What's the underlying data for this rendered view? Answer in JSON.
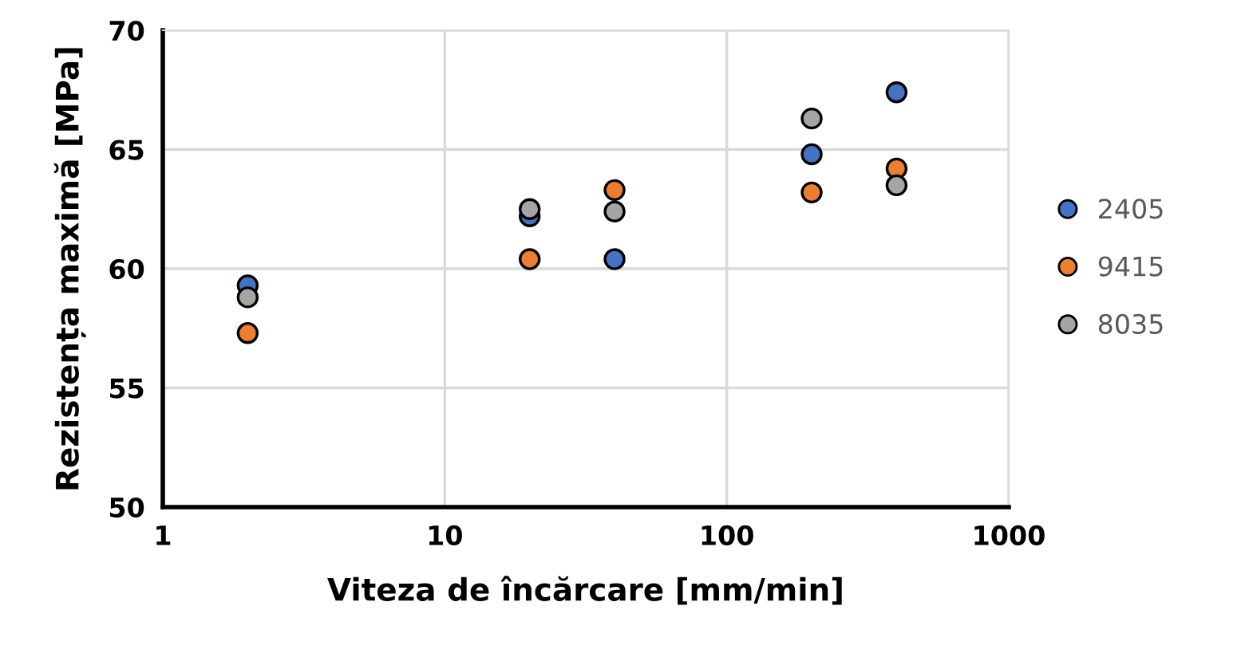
{
  "chart_data": {
    "type": "scatter",
    "xlabel": "Viteza de încărcare [mm/min]",
    "ylabel": "Rezistența maximă [MPa]",
    "log": "x",
    "xlim": [
      1,
      1000
    ],
    "xticks": [
      1,
      10,
      100,
      1000
    ],
    "ylim": [
      50,
      70
    ],
    "yticks": [
      50,
      55,
      60,
      65,
      70
    ],
    "grid": true,
    "legend": "right",
    "marker": "circle",
    "x": [
      2,
      20,
      40,
      200,
      400
    ],
    "series": [
      {
        "name": "2405",
        "color": "#4472c4",
        "values": [
          59.3,
          62.2,
          60.4,
          64.8,
          67.4
        ]
      },
      {
        "name": "9415",
        "color": "#ed7d31",
        "values": [
          57.3,
          60.4,
          63.3,
          63.2,
          64.2
        ]
      },
      {
        "name": "8035",
        "color": "#a5a5a5",
        "values": [
          58.8,
          62.5,
          62.4,
          66.3,
          63.5
        ]
      }
    ]
  }
}
